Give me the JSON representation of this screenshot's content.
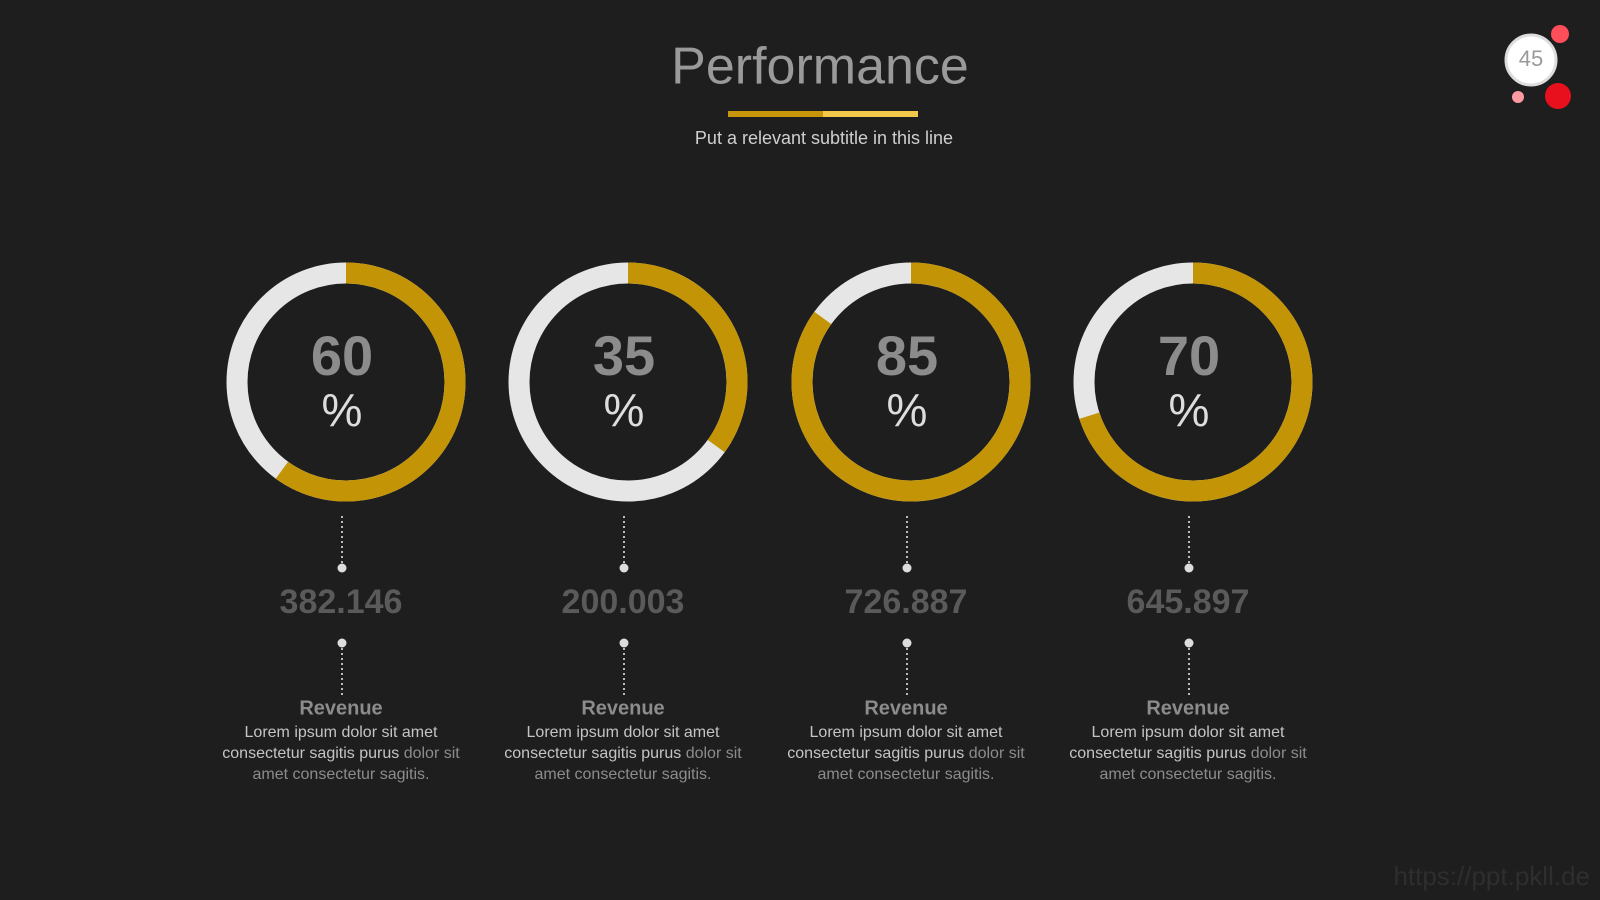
{
  "header": {
    "title": "Performance",
    "subtitle": "Put a relevant subtitle in this line",
    "page_number": 45
  },
  "percent_range": [
    0,
    100
  ],
  "cards": [
    {
      "percent": 60,
      "unit": "%",
      "amount": "382.146",
      "label": "Revenue",
      "text": [
        "Lorem ipsum dolor sit amet consectetur sagitis purus",
        "dolor sit amet consectetur sagitis."
      ]
    },
    {
      "percent": 35,
      "unit": "%",
      "amount": "200.003",
      "label": "Revenue",
      "text": [
        "Lorem ipsum dolor sit amet consectetur sagitis purus",
        "dolor sit amet consectetur sagitis."
      ]
    },
    {
      "percent": 85,
      "unit": "%",
      "amount": "726.887",
      "label": "Revenue",
      "text": [
        "Lorem ipsum dolor sit amet consectetur sagitis purus",
        "dolor sit amet consectetur sagitis."
      ]
    },
    {
      "percent": 70,
      "unit": "%",
      "amount": "645.897",
      "label": "Revenue",
      "text": [
        "Lorem ipsum dolor sit amet consectetur sagitis purus",
        "dolor sit amet consectetur sagitis."
      ]
    }
  ],
  "watermark": "https://ppt.pkll.de"
}
